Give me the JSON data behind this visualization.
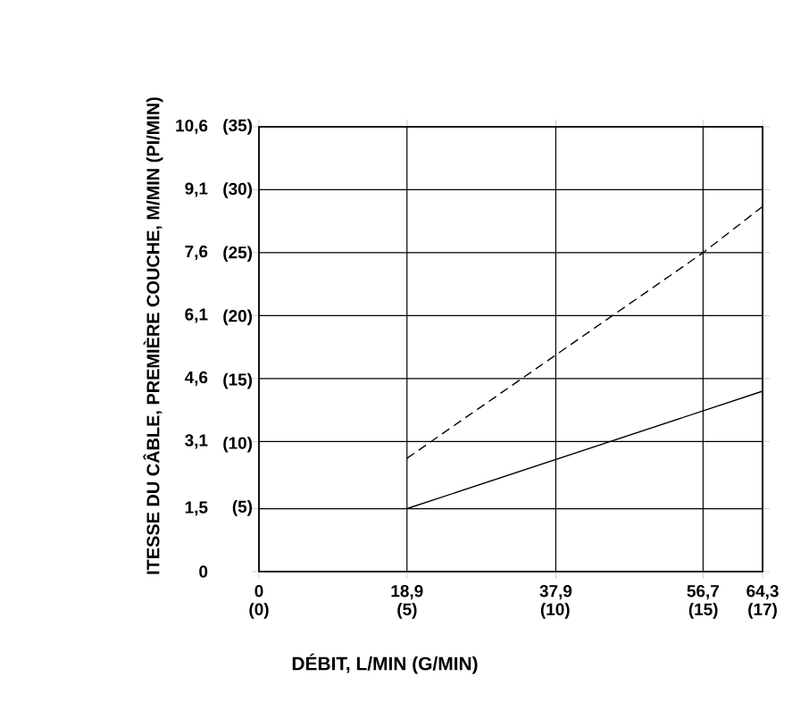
{
  "chart_data": {
    "type": "line",
    "xlabel": "DÉBIT, L/MIN (G/MIN)",
    "ylabel": "ITESSE DU CÂBLE, PREMIÈRE COUCHE, M/MIN (PI/MIN)",
    "xlim": [
      0,
      64.3
    ],
    "ylim": [
      0,
      10.6
    ],
    "xticks": [
      0,
      {
        "value": 18.9,
        "label": "18,9"
      },
      {
        "value": 37.9,
        "label": "37,9"
      },
      {
        "value": 56.7,
        "label": "56,7"
      },
      {
        "value": 64.3,
        "label": "64,3"
      }
    ],
    "x2lim": [
      0,
      17
    ],
    "x2ticks": [
      {
        "value": 0,
        "label": "(0)"
      },
      {
        "value": 5,
        "label": "(5)"
      },
      {
        "value": 10,
        "label": "(10)"
      },
      {
        "value": 15,
        "label": "(15)"
      },
      {
        "value": 17,
        "label": "(17)"
      }
    ],
    "yticks": [
      0,
      {
        "value": 1.5,
        "label": "1,5"
      },
      {
        "value": 3.1,
        "label": "3,1"
      },
      {
        "value": 4.6,
        "label": "4,6"
      },
      {
        "value": 6.1,
        "label": "6,1"
      },
      {
        "value": 7.6,
        "label": "7,6"
      },
      {
        "value": 9.1,
        "label": "9,1"
      },
      {
        "value": 10.6,
        "label": "10,6"
      }
    ],
    "y2lim": [
      0,
      35
    ],
    "y2ticks": [
      {
        "value": 5,
        "label": "(5)"
      },
      {
        "value": 10,
        "label": "(10)"
      },
      {
        "value": 15,
        "label": "(15)"
      },
      {
        "value": 20,
        "label": "(20)"
      },
      {
        "value": 25,
        "label": "(25)"
      },
      {
        "value": 30,
        "label": "(30)"
      },
      {
        "value": 35,
        "label": "(35)"
      }
    ],
    "grid": true,
    "marker": "none",
    "series": [
      {
        "color": "#000000",
        "line_style": "solid",
        "x": [
          18.9,
          64.3
        ],
        "values": [
          1.5,
          4.3
        ]
      },
      {
        "color": "#000000",
        "line_style": "dashed",
        "x": [
          18.9,
          56.7,
          64.3
        ],
        "values": [
          2.7,
          7.6,
          8.7
        ]
      }
    ]
  }
}
